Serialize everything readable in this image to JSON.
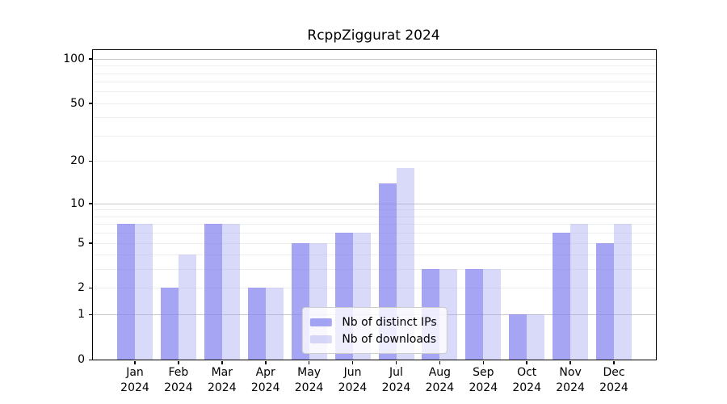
{
  "title": "RcppZiggurat 2024",
  "colors": {
    "ips": "rgba(130,130,240,0.72)",
    "downloads": "rgba(160,160,240,0.40)",
    "grid_major": "#c8c8c8",
    "grid_minor": "#eeeeee",
    "axis": "#000000",
    "background": "#ffffff"
  },
  "legend": {
    "items": [
      {
        "label": "Nb of distinct IPs",
        "color_key": "ips"
      },
      {
        "label": "Nb of downloads",
        "color_key": "downloads"
      }
    ]
  },
  "axes": {
    "yticks": [
      0,
      1,
      2,
      5,
      10,
      20,
      50,
      100
    ],
    "grid_major_values": [
      1,
      10,
      100
    ],
    "grid_minor_values": [
      2,
      3,
      4,
      5,
      6,
      7,
      8,
      9,
      20,
      30,
      40,
      50,
      60,
      70,
      80,
      90
    ],
    "month_labels": [
      "Jan",
      "Feb",
      "Mar",
      "Apr",
      "May",
      "Jun",
      "Jul",
      "Aug",
      "Sep",
      "Oct",
      "Nov",
      "Dec"
    ],
    "year_label": "2024"
  },
  "chart_data": {
    "type": "bar",
    "title": "RcppZiggurat 2024",
    "categories": [
      "Jan 2024",
      "Feb 2024",
      "Mar 2024",
      "Apr 2024",
      "May 2024",
      "Jun 2024",
      "Jul 2024",
      "Aug 2024",
      "Sep 2024",
      "Oct 2024",
      "Nov 2024",
      "Dec 2024"
    ],
    "series": [
      {
        "name": "Nb of distinct IPs",
        "color_key": "ips",
        "values": [
          7,
          2,
          7,
          2,
          5,
          6,
          14,
          3,
          3,
          1,
          6,
          5
        ]
      },
      {
        "name": "Nb of downloads",
        "color_key": "downloads",
        "values": [
          7,
          4,
          7,
          2,
          5,
          6,
          18,
          3,
          3,
          1,
          7,
          7
        ]
      }
    ],
    "xlabel": "",
    "ylabel": "",
    "yscale": "log1p",
    "ylim": [
      0,
      100
    ],
    "yticks": [
      0,
      1,
      2,
      5,
      10,
      20,
      50,
      100
    ],
    "grid": "horizontal",
    "legend_position": "lower center"
  }
}
